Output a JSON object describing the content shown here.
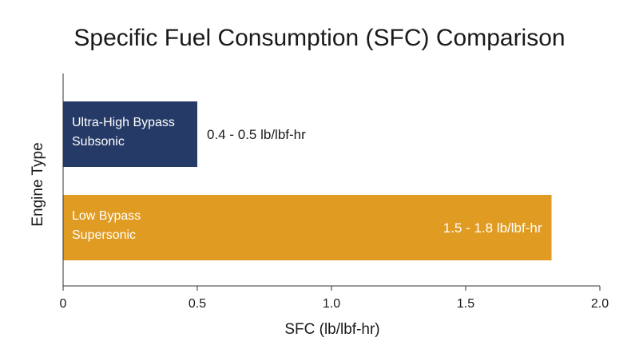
{
  "chart_data": {
    "type": "bar",
    "orientation": "horizontal",
    "title": "Specific Fuel Consumption (SFC) Comparison",
    "xlabel": "SFC (lb/lbf-hr)",
    "ylabel": "Engine Type",
    "xlim": [
      0,
      2.0
    ],
    "xticks": [
      "0",
      "0.5",
      "1.0",
      "1.5",
      "2.0"
    ],
    "xtick_values": [
      0,
      0.5,
      1.0,
      1.5,
      2.0
    ],
    "grid": false,
    "categories": [
      [
        "Ultra-High Bypass",
        "Subsonic"
      ],
      [
        "Low Bypass",
        "Supersonic"
      ]
    ],
    "values": [
      0.5,
      1.82
    ],
    "data_labels": [
      "0.4 - 0.5 lb/lbf-hr",
      "1.5 - 1.8 lb/lbf-hr"
    ],
    "data_label_placement": [
      "outside",
      "inside"
    ],
    "colors": [
      "#253A67",
      "#E09B22"
    ]
  }
}
